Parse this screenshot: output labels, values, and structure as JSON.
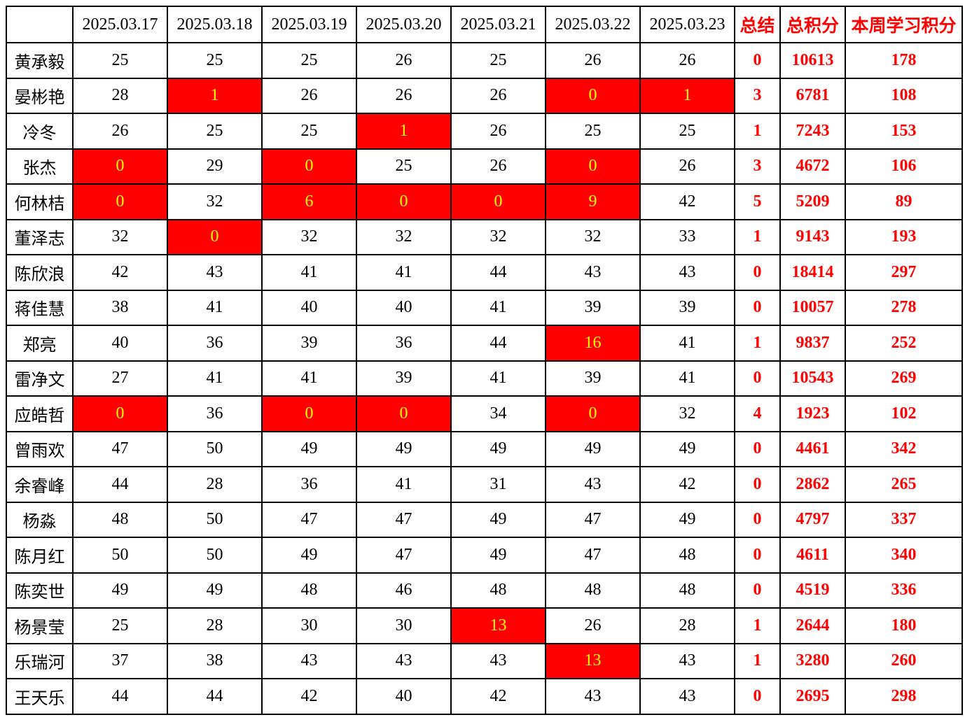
{
  "table": {
    "columns": [
      "",
      "2025.03.17",
      "2025.03.18",
      "2025.03.19",
      "2025.03.20",
      "2025.03.21",
      "2025.03.22",
      "2025.03.23",
      "总结",
      "总积分",
      "本周学习积分"
    ],
    "rows": [
      {
        "name": "黄承毅",
        "days": [
          25,
          25,
          25,
          26,
          25,
          26,
          26
        ],
        "highlight_days": [],
        "summary": "0",
        "total": "10613",
        "week": "178"
      },
      {
        "name": "晏彬艳",
        "days": [
          28,
          1,
          26,
          26,
          26,
          0,
          1
        ],
        "highlight_days": [
          1,
          5,
          6
        ],
        "summary": "3",
        "total": "6781",
        "week": "108"
      },
      {
        "name": "冷冬",
        "days": [
          26,
          25,
          25,
          1,
          26,
          25,
          25
        ],
        "highlight_days": [
          3
        ],
        "summary": "1",
        "total": "7243",
        "week": "153"
      },
      {
        "name": "张杰",
        "days": [
          0,
          29,
          0,
          25,
          26,
          0,
          26
        ],
        "highlight_days": [
          0,
          2,
          5
        ],
        "summary": "3",
        "total": "4672",
        "week": "106"
      },
      {
        "name": "何林桔",
        "days": [
          0,
          32,
          6,
          0,
          0,
          9,
          42
        ],
        "highlight_days": [
          0,
          2,
          3,
          4,
          5
        ],
        "summary": "5",
        "total": "5209",
        "week": "89"
      },
      {
        "name": "董泽志",
        "days": [
          32,
          0,
          32,
          32,
          32,
          32,
          33
        ],
        "highlight_days": [
          1
        ],
        "summary": "1",
        "total": "9143",
        "week": "193"
      },
      {
        "name": "陈欣浪",
        "days": [
          42,
          43,
          41,
          41,
          44,
          43,
          43
        ],
        "highlight_days": [],
        "summary": "0",
        "total": "18414",
        "week": "297"
      },
      {
        "name": "蒋佳慧",
        "days": [
          38,
          41,
          40,
          40,
          41,
          39,
          39
        ],
        "highlight_days": [],
        "summary": "0",
        "total": "10057",
        "week": "278"
      },
      {
        "name": "郑亮",
        "days": [
          40,
          36,
          39,
          36,
          44,
          16,
          41
        ],
        "highlight_days": [
          5
        ],
        "summary": "1",
        "total": "9837",
        "week": "252"
      },
      {
        "name": "雷净文",
        "days": [
          27,
          41,
          41,
          39,
          41,
          39,
          41
        ],
        "highlight_days": [],
        "summary": "0",
        "total": "10543",
        "week": "269"
      },
      {
        "name": "应皓哲",
        "days": [
          0,
          36,
          0,
          0,
          34,
          0,
          32
        ],
        "highlight_days": [
          0,
          2,
          3,
          5
        ],
        "summary": "4",
        "total": "1923",
        "week": "102"
      },
      {
        "name": "曾雨欢",
        "days": [
          47,
          50,
          49,
          49,
          49,
          49,
          49
        ],
        "highlight_days": [],
        "summary": "0",
        "total": "4461",
        "week": "342"
      },
      {
        "name": "余睿峰",
        "days": [
          44,
          28,
          36,
          41,
          31,
          43,
          42
        ],
        "highlight_days": [],
        "summary": "0",
        "total": "2862",
        "week": "265"
      },
      {
        "name": "杨淼",
        "days": [
          48,
          50,
          47,
          47,
          49,
          47,
          49
        ],
        "highlight_days": [],
        "summary": "0",
        "total": "4797",
        "week": "337"
      },
      {
        "name": "陈月红",
        "days": [
          50,
          50,
          49,
          47,
          49,
          47,
          48
        ],
        "highlight_days": [],
        "summary": "0",
        "total": "4611",
        "week": "340"
      },
      {
        "name": "陈奕世",
        "days": [
          49,
          49,
          48,
          46,
          48,
          48,
          48
        ],
        "highlight_days": [],
        "summary": "0",
        "total": "4519",
        "week": "336"
      },
      {
        "name": "杨景莹",
        "days": [
          25,
          28,
          30,
          30,
          13,
          26,
          28
        ],
        "highlight_days": [
          4
        ],
        "summary": "1",
        "total": "2644",
        "week": "180"
      },
      {
        "name": "乐瑞河",
        "days": [
          37,
          38,
          43,
          43,
          43,
          13,
          43
        ],
        "highlight_days": [
          5
        ],
        "summary": "1",
        "total": "3280",
        "week": "260"
      },
      {
        "name": "王天乐",
        "days": [
          44,
          44,
          42,
          40,
          42,
          43,
          43
        ],
        "highlight_days": [],
        "summary": "0",
        "total": "2695",
        "week": "298"
      }
    ]
  },
  "colors": {
    "accent_text": "#FF0000",
    "highlight_bg": "#FF0000",
    "highlight_text": "#FFFF00",
    "border": "#000000",
    "normal_text": "#000000"
  }
}
